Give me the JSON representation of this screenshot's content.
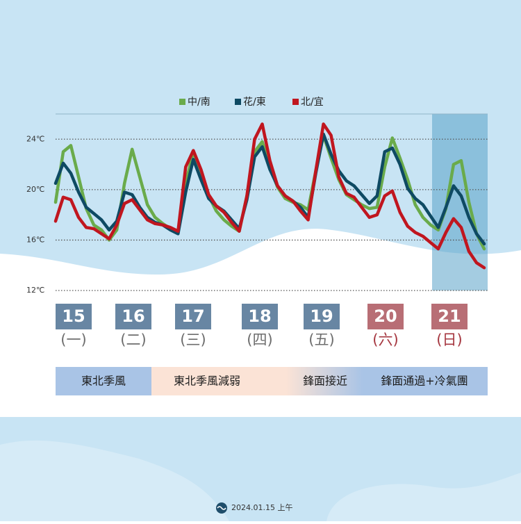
{
  "chart_data": {
    "type": "line",
    "legend_position": "top",
    "grid": true,
    "x": [
      0,
      3,
      6,
      9,
      12,
      15,
      18,
      21,
      24,
      27,
      30,
      33,
      36,
      39,
      42,
      45,
      48,
      51,
      54,
      57,
      60,
      63,
      66,
      69,
      72,
      75,
      78,
      81,
      84,
      87,
      90,
      93,
      96,
      99,
      102,
      105,
      108,
      111,
      114,
      117,
      120,
      123,
      126,
      129,
      132,
      135,
      138,
      141,
      144,
      147,
      150,
      153,
      156,
      159,
      162,
      165,
      168
    ],
    "xlim": [
      0,
      168
    ],
    "ylim": [
      12,
      26
    ],
    "yticks": [
      {
        "value": 12,
        "label": "12℃"
      },
      {
        "value": 16,
        "label": "16℃"
      },
      {
        "value": 20,
        "label": "20℃"
      },
      {
        "value": 24,
        "label": "24℃"
      }
    ],
    "series": [
      {
        "name": "中/南",
        "color": "#6aab4b",
        "values": [
          19.0,
          23.0,
          23.5,
          21.0,
          18.5,
          17.2,
          16.8,
          16.0,
          16.8,
          20.5,
          23.2,
          21.0,
          18.8,
          17.8,
          17.3,
          16.9,
          16.6,
          20.5,
          23.0,
          21.5,
          19.5,
          18.3,
          17.6,
          17.1,
          16.7,
          19.5,
          23.0,
          23.8,
          21.8,
          20.2,
          19.3,
          19.0,
          18.8,
          18.4,
          21.5,
          24.3,
          22.5,
          20.8,
          19.6,
          19.2,
          18.8,
          18.5,
          18.6,
          21.8,
          24.1,
          22.5,
          20.8,
          18.8,
          17.8,
          17.2,
          16.8,
          18.5,
          22.0,
          22.3,
          19.0,
          16.5,
          15.3
        ]
      },
      {
        "name": "花/東",
        "color": "#0e4a63",
        "values": [
          20.5,
          22.1,
          21.3,
          19.8,
          18.6,
          18.1,
          17.6,
          16.8,
          17.5,
          19.8,
          19.6,
          18.6,
          17.8,
          17.4,
          17.2,
          16.8,
          16.5,
          19.8,
          22.4,
          20.8,
          19.3,
          18.7,
          18.3,
          17.6,
          16.9,
          19.2,
          22.6,
          23.4,
          21.6,
          20.3,
          19.5,
          19.1,
          18.6,
          17.8,
          21.3,
          24.4,
          22.8,
          21.5,
          20.7,
          20.3,
          19.6,
          18.9,
          19.5,
          23.0,
          23.3,
          22.0,
          20.1,
          19.3,
          18.8,
          17.9,
          17.0,
          18.6,
          20.3,
          19.5,
          17.8,
          16.5,
          15.7
        ]
      },
      {
        "name": "北/宜",
        "color": "#c0161f",
        "values": [
          17.5,
          19.4,
          19.2,
          17.8,
          17.0,
          16.9,
          16.5,
          16.1,
          17.2,
          18.9,
          19.2,
          18.4,
          17.6,
          17.3,
          17.2,
          17.0,
          16.7,
          21.8,
          23.1,
          21.6,
          19.6,
          18.7,
          18.2,
          17.4,
          16.7,
          19.5,
          24.0,
          25.2,
          22.3,
          20.3,
          19.5,
          19.1,
          18.3,
          17.6,
          21.5,
          25.2,
          24.3,
          21.0,
          19.7,
          19.4,
          18.6,
          17.8,
          18.0,
          19.5,
          19.9,
          18.2,
          17.1,
          16.6,
          16.3,
          15.8,
          15.3,
          16.6,
          17.7,
          17.0,
          15.1,
          14.2,
          13.8
        ]
      }
    ]
  },
  "days": [
    {
      "date": "15",
      "weekday": "(一)"
    },
    {
      "date": "16",
      "weekday": "(二)"
    },
    {
      "date": "17",
      "weekday": "(三)"
    },
    {
      "date": "18",
      "weekday": "(四)"
    },
    {
      "date": "19",
      "weekday": "(五)"
    },
    {
      "date": "20",
      "weekday": "(六)"
    },
    {
      "date": "21",
      "weekday": "(日)"
    }
  ],
  "periods": [
    "東北季風",
    "東北季風減弱",
    "鋒面接近",
    "鋒面通過+冷氣團"
  ],
  "footer": "2024.01.15 上午"
}
